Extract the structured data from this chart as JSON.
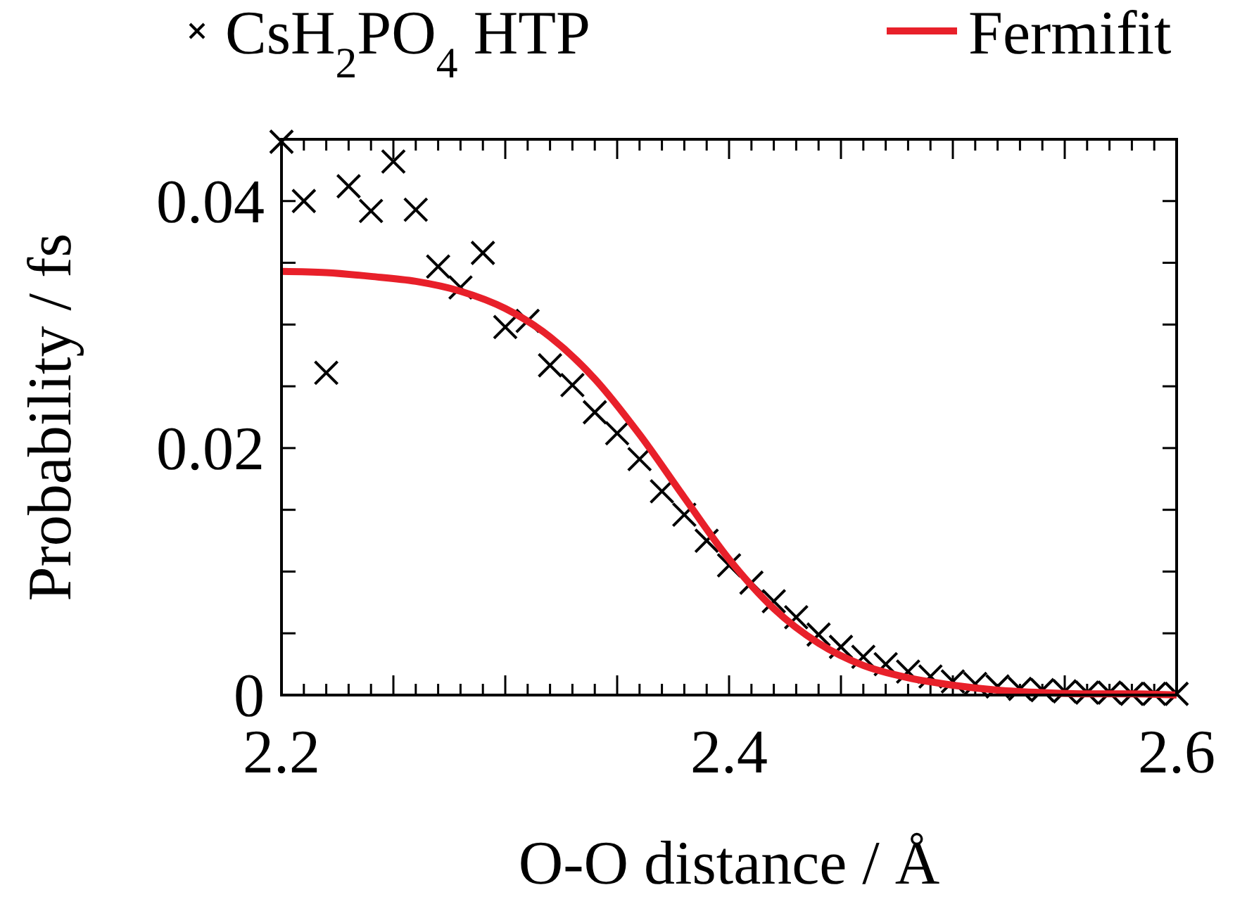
{
  "chart_data": {
    "type": "scatter",
    "xlabel": "O-O distance / Å",
    "ylabel": "Probability / fs",
    "xlim": [
      2.2,
      2.6
    ],
    "ylim": [
      0,
      0.045
    ],
    "xticks": [
      2.2,
      {
        "value": 2.21,
        "label": null
      },
      {
        "value": 2.22,
        "label": null
      },
      {
        "value": 2.23,
        "label": null
      },
      {
        "value": 2.24,
        "label": null
      },
      {
        "value": 2.25,
        "label": null
      },
      {
        "value": 2.26,
        "label": null
      },
      {
        "value": 2.27,
        "label": null
      },
      {
        "value": 2.28,
        "label": null
      },
      {
        "value": 2.29,
        "label": null
      },
      {
        "value": 2.3,
        "label": null
      },
      {
        "value": 2.31,
        "label": null
      },
      {
        "value": 2.32,
        "label": null
      },
      {
        "value": 2.33,
        "label": null
      },
      {
        "value": 2.34,
        "label": null
      },
      {
        "value": 2.35,
        "label": null
      },
      {
        "value": 2.36,
        "label": null
      },
      {
        "value": 2.37,
        "label": null
      },
      {
        "value": 2.38,
        "label": null
      },
      {
        "value": 2.39,
        "label": null
      },
      2.4,
      {
        "value": 2.41,
        "label": null
      },
      {
        "value": 2.42,
        "label": null
      },
      {
        "value": 2.43,
        "label": null
      },
      {
        "value": 2.44,
        "label": null
      },
      {
        "value": 2.45,
        "label": null
      },
      {
        "value": 2.46,
        "label": null
      },
      {
        "value": 2.47,
        "label": null
      },
      {
        "value": 2.48,
        "label": null
      },
      {
        "value": 2.49,
        "label": null
      },
      {
        "value": 2.5,
        "label": null
      },
      {
        "value": 2.51,
        "label": null
      },
      {
        "value": 2.52,
        "label": null
      },
      {
        "value": 2.53,
        "label": null
      },
      {
        "value": 2.54,
        "label": null
      },
      {
        "value": 2.55,
        "label": null
      },
      {
        "value": 2.56,
        "label": null
      },
      {
        "value": 2.57,
        "label": null
      },
      {
        "value": 2.58,
        "label": null
      },
      {
        "value": 2.59,
        "label": null
      },
      2.6
    ],
    "yticks": [
      0,
      {
        "value": 0.005,
        "label": null
      },
      {
        "value": 0.01,
        "label": null
      },
      {
        "value": 0.015,
        "label": null
      },
      0.02,
      {
        "value": 0.025,
        "label": null
      },
      {
        "value": 0.03,
        "label": null
      },
      {
        "value": 0.035,
        "label": null
      },
      0.04
    ],
    "grid": false,
    "legend": "top",
    "series": [
      {
        "name": "CsH$_{2}$PO$_{4}$ HTP",
        "marker": "cross",
        "color": "#000000",
        "x": [
          2.2,
          2.21,
          2.22,
          2.23,
          2.24,
          2.25,
          2.26,
          2.27,
          2.28,
          2.29,
          2.3,
          2.31,
          2.32,
          2.33,
          2.34,
          2.35,
          2.36,
          2.37,
          2.38,
          2.39,
          2.4,
          2.41,
          2.42,
          2.43,
          2.44,
          2.45,
          2.46,
          2.47,
          2.48,
          2.49,
          2.5,
          2.51,
          2.52,
          2.53,
          2.54,
          2.55,
          2.56,
          2.57,
          2.58,
          2.59,
          2.6
        ],
        "values": [
          0.0448,
          0.04,
          0.0261,
          0.0412,
          0.0392,
          0.0432,
          0.0393,
          0.0347,
          0.033,
          0.0358,
          0.0298,
          0.0303,
          0.0267,
          0.0251,
          0.0229,
          0.0212,
          0.0191,
          0.0165,
          0.0146,
          0.0125,
          0.0105,
          0.0091,
          0.0076,
          0.0063,
          0.0049,
          0.0039,
          0.0031,
          0.0025,
          0.0019,
          0.0015,
          0.0011,
          0.0009,
          0.0007,
          0.0005,
          0.0004,
          0.0003,
          0.0002,
          0.0002,
          0.0001,
          0.0001,
          0.0001
        ]
      },
      {
        "name": "Fermifit",
        "type": "line",
        "line_style": "solid",
        "color": "#e8202a",
        "x": [
          2.2,
          2.22,
          2.24,
          2.26,
          2.28,
          2.3,
          2.32,
          2.34,
          2.36,
          2.38,
          2.4,
          2.42,
          2.44,
          2.46,
          2.48,
          2.5,
          2.52,
          2.54,
          2.56,
          2.58,
          2.6
        ],
        "values": [
          0.0343,
          0.0342,
          0.0339,
          0.0335,
          0.0327,
          0.0313,
          0.029,
          0.0256,
          0.0211,
          0.016,
          0.011,
          0.007,
          0.0042,
          0.0024,
          0.0014,
          0.0008,
          0.0004,
          0.0002,
          0.0001,
          0.0001,
          0
        ]
      }
    ]
  }
}
